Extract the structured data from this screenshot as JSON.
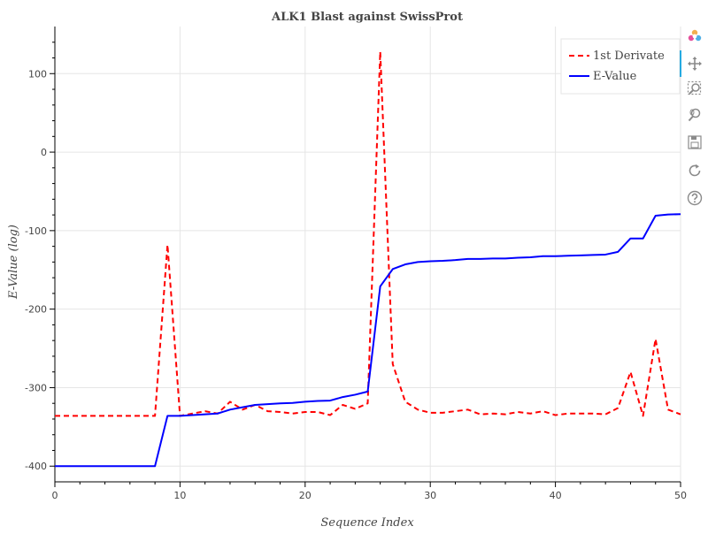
{
  "chart_data": {
    "type": "line",
    "title": "ALK1 Blast against SwissProt",
    "xlabel": "Sequence Index",
    "ylabel": "E-Value (log)",
    "xlim": [
      0,
      50
    ],
    "ylim": [
      -420,
      160
    ],
    "x_ticks": [
      0,
      10,
      20,
      30,
      40,
      50
    ],
    "y_ticks": [
      -400,
      -300,
      -200,
      -100,
      0,
      100
    ],
    "grid": true,
    "legend_position": "top-right",
    "series": [
      {
        "name": "1st Derivate",
        "color": "#ff0000",
        "style": "dashed",
        "x": [
          0,
          1,
          2,
          3,
          4,
          5,
          6,
          7,
          8,
          9,
          10,
          11,
          12,
          13,
          14,
          15,
          16,
          17,
          18,
          19,
          20,
          21,
          22,
          23,
          24,
          25,
          26,
          27,
          28,
          29,
          30,
          31,
          32,
          33,
          34,
          35,
          36,
          37,
          38,
          39,
          40,
          41,
          42,
          43,
          44,
          45,
          46,
          47,
          48,
          49,
          50
        ],
        "y": [
          -336,
          -336,
          -336,
          -336,
          -336,
          -336,
          -336,
          -336,
          -336,
          -118,
          -336,
          -333,
          -330,
          -333,
          -318,
          -328,
          -322,
          -330,
          -331,
          -333,
          -331,
          -331,
          -335,
          -322,
          -327,
          -320,
          128,
          -270,
          -318,
          -328,
          -332,
          -332,
          -330,
          -328,
          -334,
          -333,
          -334,
          -331,
          -333,
          -330,
          -335,
          -333,
          -333,
          -333,
          -334,
          -326,
          -280,
          -336,
          -238,
          -328,
          -334
        ]
      },
      {
        "name": "E-Value",
        "color": "#0000ff",
        "style": "solid",
        "x": [
          0,
          1,
          2,
          3,
          4,
          5,
          6,
          7,
          8,
          9,
          10,
          11,
          12,
          13,
          14,
          15,
          16,
          17,
          18,
          19,
          20,
          21,
          22,
          23,
          24,
          25,
          26,
          27,
          28,
          29,
          30,
          31,
          32,
          33,
          34,
          35,
          36,
          37,
          38,
          39,
          40,
          41,
          42,
          43,
          44,
          45,
          46,
          47,
          48,
          49,
          50
        ],
        "y": [
          -400,
          -400,
          -400,
          -400,
          -400,
          -400,
          -400,
          -400,
          -400,
          -336,
          -336,
          -335,
          -334,
          -333,
          -328,
          -325,
          -322,
          -321,
          -320,
          -319.5,
          -318,
          -317,
          -316.5,
          -312,
          -309,
          -305,
          -171,
          -149,
          -143,
          -140,
          -139,
          -138.5,
          -137.5,
          -136,
          -136,
          -135.5,
          -135.5,
          -134.5,
          -134,
          -132.5,
          -132.5,
          -132,
          -131.5,
          -131,
          -130.5,
          -127,
          -110,
          -110,
          -81,
          -79.5,
          -79
        ]
      }
    ]
  },
  "toolbar": {
    "icons": [
      "bokeh-logo-icon",
      "pan-icon",
      "box-zoom-icon",
      "wheel-zoom-icon",
      "save-icon",
      "reset-icon",
      "help-icon"
    ]
  }
}
